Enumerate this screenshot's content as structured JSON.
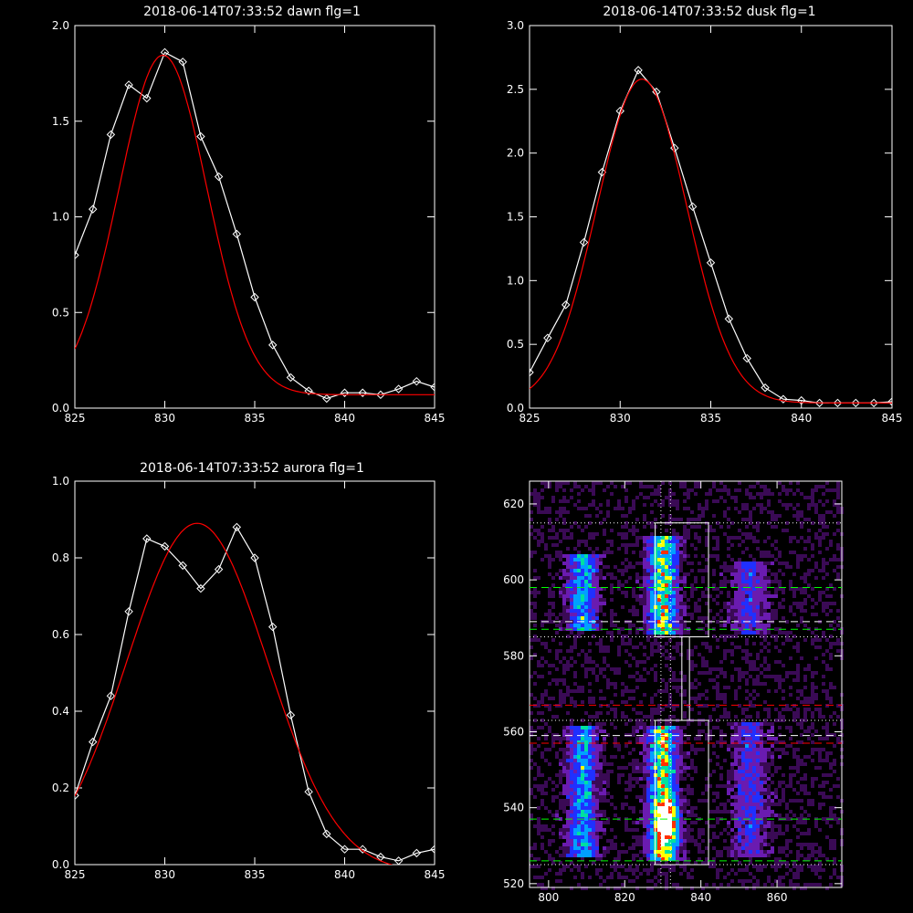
{
  "chart_data": [
    {
      "id": "dawn",
      "type": "line",
      "title": "2018-06-14T07:33:52 dawn flg=1",
      "xlim": [
        825,
        845
      ],
      "ylim": [
        0,
        2.0
      ],
      "xticks": [
        825,
        830,
        835,
        840,
        845
      ],
      "xtick_labels": [
        "825",
        "830",
        "835",
        "840",
        "845"
      ],
      "yticks": [
        0,
        0.5,
        1.0,
        1.5,
        2.0
      ],
      "ytick_labels": [
        "0.0",
        "0.5",
        "1.0",
        "1.5",
        "2.0"
      ],
      "series": [
        {
          "kind": "data",
          "color": "#ffffff",
          "marker": "diamond",
          "x": [
            825,
            826,
            827,
            828,
            829,
            830,
            831,
            832,
            833,
            834,
            835,
            836,
            837,
            838,
            839,
            840,
            841,
            842,
            843,
            844,
            845
          ],
          "y": [
            0.8,
            1.04,
            1.43,
            1.69,
            1.62,
            1.86,
            1.81,
            1.42,
            1.21,
            0.91,
            0.58,
            0.33,
            0.16,
            0.09,
            0.05,
            0.08,
            0.08,
            0.07,
            0.1,
            0.14,
            0.11
          ]
        },
        {
          "kind": "fit",
          "color": "#ff0000",
          "gaussian": {
            "amplitude": 1.775,
            "center": 829.9,
            "sigma": 2.45,
            "offset": 0.07
          }
        }
      ]
    },
    {
      "id": "dusk",
      "type": "line",
      "title": "2018-06-14T07:33:52 dusk flg=1",
      "xlim": [
        825,
        845
      ],
      "ylim": [
        0,
        3.0
      ],
      "xticks": [
        825,
        830,
        835,
        840,
        845
      ],
      "xtick_labels": [
        "825",
        "830",
        "835",
        "840",
        "845"
      ],
      "yticks": [
        0,
        0.5,
        1.0,
        1.5,
        2.0,
        2.5,
        3.0
      ],
      "ytick_labels": [
        "0.0",
        "0.5",
        "1.0",
        "1.5",
        "2.0",
        "2.5",
        "3.0"
      ],
      "series": [
        {
          "kind": "data",
          "color": "#ffffff",
          "marker": "diamond",
          "x": [
            825,
            826,
            827,
            828,
            829,
            830,
            831,
            832,
            833,
            834,
            835,
            836,
            837,
            838,
            839,
            840,
            841,
            842,
            843,
            844,
            845
          ],
          "y": [
            0.28,
            0.55,
            0.81,
            1.3,
            1.85,
            2.33,
            2.65,
            2.48,
            2.04,
            1.58,
            1.14,
            0.7,
            0.39,
            0.16,
            0.07,
            0.06,
            0.04,
            0.04,
            0.04,
            0.04,
            0.05
          ]
        },
        {
          "kind": "fit",
          "color": "#ff0000",
          "gaussian": {
            "amplitude": 2.54,
            "center": 831.2,
            "sigma": 2.48,
            "offset": 0.04
          }
        }
      ]
    },
    {
      "id": "aurora",
      "type": "line",
      "title": "2018-06-14T07:33:52 aurora flg=1",
      "xlim": [
        825,
        845
      ],
      "ylim": [
        0,
        1.0
      ],
      "xticks": [
        825,
        830,
        835,
        840,
        845
      ],
      "xtick_labels": [
        "825",
        "830",
        "835",
        "840",
        "845"
      ],
      "yticks": [
        0,
        0.2,
        0.4,
        0.6,
        0.8,
        1.0
      ],
      "ytick_labels": [
        "0.0",
        "0.2",
        "0.4",
        "0.6",
        "0.8",
        "1.0"
      ],
      "series": [
        {
          "kind": "data",
          "color": "#ffffff",
          "marker": "diamond",
          "x": [
            825,
            826,
            827,
            828,
            829,
            830,
            831,
            832,
            833,
            834,
            835,
            836,
            837,
            838,
            839,
            840,
            841,
            842,
            843,
            844,
            845
          ],
          "y": [
            0.18,
            0.32,
            0.44,
            0.66,
            0.85,
            0.83,
            0.78,
            0.72,
            0.77,
            0.88,
            0.8,
            0.62,
            0.39,
            0.19,
            0.08,
            0.04,
            0.04,
            0.02,
            0.01,
            0.03,
            0.04
          ]
        },
        {
          "kind": "fit",
          "color": "#ff0000",
          "gaussian": {
            "amplitude": 0.91,
            "center": 831.8,
            "sigma": 3.9,
            "offset": -0.02
          }
        }
      ]
    },
    {
      "id": "spectrogram",
      "type": "heatmap",
      "title": "",
      "xlim": [
        795,
        877
      ],
      "ylim": [
        519,
        626
      ],
      "xticks": [
        800,
        820,
        840,
        860
      ],
      "xtick_labels": [
        "800",
        "820",
        "840",
        "860"
      ],
      "yticks": [
        520,
        540,
        560,
        580,
        600,
        620
      ],
      "ytick_labels": [
        "520",
        "540",
        "560",
        "580",
        "600",
        "620"
      ],
      "colormap": [
        "#000000",
        "#3a0a55",
        "#6a1bb0",
        "#2030ff",
        "#00a0ff",
        "#00e0a0",
        "#ffff00",
        "#ff3000",
        "#ffffff"
      ],
      "emission_bands": [
        {
          "x": 809,
          "width": 2.5,
          "y_ranges": [
            [
              587,
              607
            ],
            [
              527,
              562
            ]
          ],
          "strength": 0.55
        },
        {
          "x": 830,
          "width": 2.5,
          "y_ranges": [
            [
              586,
              612
            ],
            [
              526,
              562
            ]
          ],
          "strength": 0.8
        },
        {
          "x": 853,
          "width": 3.0,
          "y_ranges": [
            [
              586,
              605
            ],
            [
              527,
              563
            ]
          ],
          "strength": 0.3
        }
      ],
      "peak": {
        "x": 831,
        "y": 536
      },
      "boxes": [
        {
          "color": "#ffffff",
          "x": [
            828,
            842
          ],
          "y": [
            585,
            615
          ]
        },
        {
          "color": "#ffffff",
          "x": [
            828,
            842
          ],
          "y": [
            525,
            563
          ]
        },
        {
          "color": "#ffffff",
          "x": [
            835,
            837
          ],
          "y": [
            563,
            585
          ]
        }
      ],
      "hlines": [
        {
          "y": 615,
          "color": "#ffffff",
          "style": "dotted"
        },
        {
          "y": 563,
          "color": "#ffffff",
          "style": "dotted"
        },
        {
          "y": 585,
          "color": "#ffffff",
          "style": "dotted"
        },
        {
          "y": 525,
          "color": "#ffffff",
          "style": "dotted"
        },
        {
          "y": 598,
          "color": "#00ff00",
          "style": "dashed"
        },
        {
          "y": 587,
          "color": "#00ff00",
          "style": "dashed"
        },
        {
          "y": 537,
          "color": "#00ff00",
          "style": "dashed"
        },
        {
          "y": 526,
          "color": "#00ff00",
          "style": "dashed"
        },
        {
          "y": 589,
          "color": "#ffffff",
          "style": "dashed"
        },
        {
          "y": 559,
          "color": "#ffffff",
          "style": "dashed"
        },
        {
          "y": 567,
          "color": "#ff0000",
          "style": "dashed"
        },
        {
          "y": 557,
          "color": "#ff0000",
          "style": "dashed"
        }
      ],
      "vlines": [
        {
          "x": 829.5,
          "color": "#ffffff",
          "style": "dotted"
        },
        {
          "x": 832,
          "color": "#ffffff",
          "style": "dotted"
        }
      ]
    }
  ]
}
